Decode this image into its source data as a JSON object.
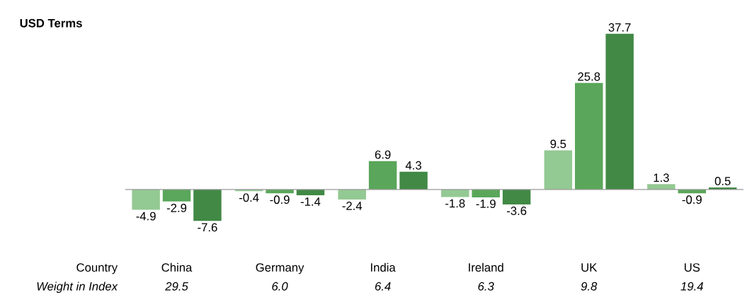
{
  "chart_data": {
    "type": "bar",
    "title": "USD Terms",
    "categories": [
      "China",
      "Germany",
      "India",
      "Ireland",
      "UK",
      "US"
    ],
    "series": [
      {
        "color": "#93c993",
        "values": [
          -4.9,
          -0.4,
          -2.4,
          -1.8,
          9.5,
          1.3
        ]
      },
      {
        "color": "#5aa65a",
        "values": [
          -2.9,
          -0.9,
          6.9,
          -1.9,
          25.8,
          -0.9
        ]
      },
      {
        "color": "#418945",
        "values": [
          -7.6,
          -1.4,
          4.3,
          -3.6,
          37.7,
          0.5
        ]
      }
    ],
    "data_labels": true,
    "annotations": [
      "Country",
      "Weight in Index",
      "29.5",
      "6.0",
      "6.4",
      "6.3",
      "9.8",
      "19.4"
    ]
  }
}
